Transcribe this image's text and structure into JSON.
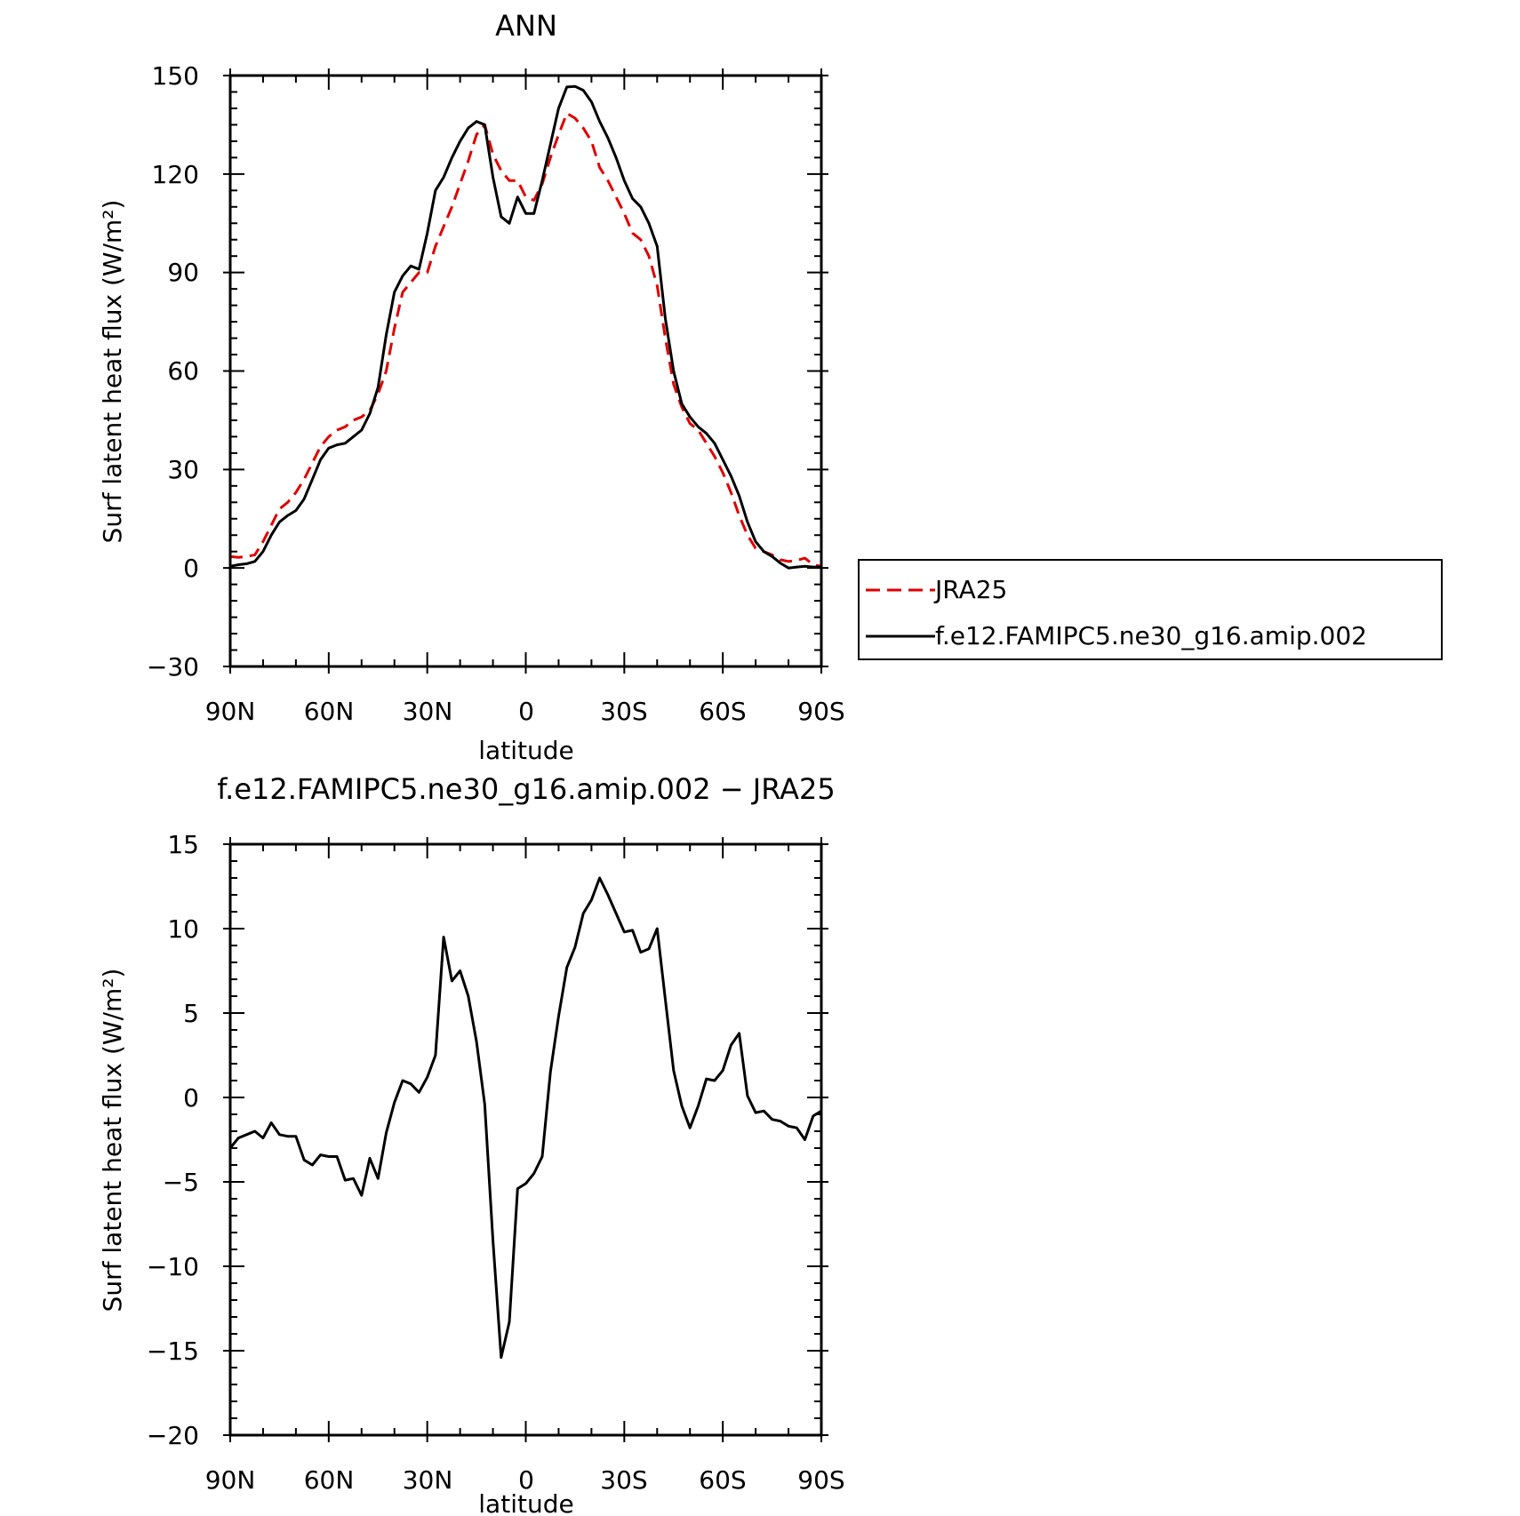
{
  "chart_data": [
    {
      "type": "line",
      "title": "ANN",
      "xlabel": "latitude",
      "ylabel": "Surf latent heat flux (W/m²)",
      "xlim": [
        90,
        -90
      ],
      "ylim": [
        -30,
        150
      ],
      "xtick_values": [
        90,
        60,
        30,
        0,
        -30,
        -60,
        -90
      ],
      "xtick_labels": [
        "90N",
        "60N",
        "30N",
        "0",
        "30S",
        "60S",
        "90S"
      ],
      "yticks": [
        150,
        120,
        90,
        60,
        30,
        0,
        -30
      ],
      "ytick_labels": [
        "150",
        "120",
        "90",
        "60",
        "30",
        "0",
        "−30"
      ],
      "legend_position": "right",
      "series": [
        {
          "name": "JRA25",
          "color": "#e00000",
          "dash": "dashed",
          "x": [
            90,
            87.5,
            85,
            82.5,
            80,
            77.5,
            75,
            72.5,
            70,
            67.5,
            65,
            62.5,
            60,
            57.5,
            55,
            52.5,
            50,
            47.5,
            45,
            42.5,
            40,
            37.5,
            35,
            32.5,
            30,
            27.5,
            25,
            22.5,
            20,
            17.5,
            15,
            12.5,
            10,
            7.5,
            5,
            2.5,
            0,
            -2.5,
            -5,
            -7.5,
            -10,
            -12.5,
            -15,
            -17.5,
            -20,
            -22.5,
            -25,
            -27.5,
            -30,
            -32.5,
            -35,
            -37.5,
            -40,
            -42.5,
            -45,
            -47.5,
            -50,
            -52.5,
            -55,
            -57.5,
            -60,
            -62.5,
            -65,
            -67.5,
            -70,
            -72.5,
            -75,
            -77.5,
            -80,
            -82.5,
            -85,
            -87.5,
            -90
          ],
          "values": [
            3.5,
            3.2,
            3.5,
            4,
            8,
            13,
            18,
            20,
            23,
            27,
            32,
            37,
            40,
            42,
            43,
            45,
            46,
            48,
            53,
            60,
            73,
            84,
            87,
            90,
            90,
            98,
            104,
            110,
            117,
            124,
            132,
            135,
            126,
            121,
            118,
            118,
            113,
            112,
            117,
            125,
            132,
            138.5,
            137,
            134,
            130,
            122,
            118,
            113,
            108,
            102,
            100,
            95,
            86,
            70,
            56,
            49,
            44,
            42,
            38,
            34,
            29,
            23,
            16,
            10,
            6,
            5,
            4,
            2.5,
            2,
            2.3,
            3,
            1,
            0.5
          ]
        },
        {
          "name": "f.e12.FAMIPC5.ne30_g16.amip.002",
          "color": "#000000",
          "dash": "solid",
          "x": [
            90,
            87.5,
            85,
            82.5,
            80,
            77.5,
            75,
            72.5,
            70,
            67.5,
            65,
            62.5,
            60,
            57.5,
            55,
            52.5,
            50,
            47.5,
            45,
            42.5,
            40,
            37.5,
            35,
            32.5,
            30,
            27.5,
            25,
            22.5,
            20,
            17.5,
            15,
            12.5,
            10,
            7.5,
            5,
            2.5,
            0,
            -2.5,
            -5,
            -7.5,
            -10,
            -12.5,
            -15,
            -17.5,
            -20,
            -22.5,
            -25,
            -27.5,
            -30,
            -32.5,
            -35,
            -37.5,
            -40,
            -42.5,
            -45,
            -47.5,
            -50,
            -52.5,
            -55,
            -57.5,
            -60,
            -62.5,
            -65,
            -67.5,
            -70,
            -72.5,
            -75,
            -77.5,
            -80,
            -82.5,
            -85,
            -87.5,
            -90
          ],
          "values": [
            0.5,
            1,
            1.3,
            2,
            5,
            10,
            14,
            16,
            17.5,
            21,
            27,
            33,
            36.5,
            37.5,
            38,
            40,
            42,
            47,
            55,
            71,
            84,
            89,
            92,
            91,
            102,
            115,
            119,
            125,
            130,
            134,
            136,
            135,
            119,
            107,
            105,
            113,
            108,
            108,
            118,
            129,
            140,
            146.5,
            146.7,
            145.5,
            142,
            136,
            131,
            125,
            118,
            112.5,
            110,
            105,
            98,
            76,
            60,
            50,
            46,
            43,
            41,
            38,
            33,
            28,
            22,
            14,
            8,
            5,
            3.5,
            1.5,
            0,
            0.3,
            0.5,
            0.3,
            0.3
          ]
        }
      ]
    },
    {
      "type": "line",
      "title": "f.e12.FAMIPC5.ne30_g16.amip.002 − JRA25",
      "xlabel": "latitude",
      "ylabel": "Surf latent heat flux (W/m²)",
      "xlim": [
        90,
        -90
      ],
      "ylim": [
        -20,
        15
      ],
      "xtick_values": [
        90,
        60,
        30,
        0,
        -30,
        -60,
        -90
      ],
      "xtick_labels": [
        "90N",
        "60N",
        "30N",
        "0",
        "30S",
        "60S",
        "90S"
      ],
      "yticks": [
        15,
        10,
        5,
        0,
        -5,
        -10,
        -15,
        -20
      ],
      "ytick_labels": [
        "15",
        "10",
        "5",
        "0",
        "−5",
        "−10",
        "−15",
        "−20"
      ],
      "series": [
        {
          "color": "#000000",
          "dash": "solid",
          "x": [
            90,
            87.5,
            85,
            82.5,
            80,
            77.5,
            75,
            72.5,
            70,
            67.5,
            65,
            62.5,
            60,
            57.5,
            55,
            52.5,
            50,
            47.5,
            45,
            42.5,
            40,
            37.5,
            35,
            32.5,
            30,
            27.5,
            25,
            22.5,
            20,
            17.5,
            15,
            12.5,
            10,
            7.5,
            5,
            2.5,
            0,
            -2.5,
            -5,
            -7.5,
            -10,
            -12.5,
            -15,
            -17.5,
            -20,
            -22.5,
            -25,
            -27.5,
            -30,
            -32.5,
            -35,
            -37.5,
            -40,
            -42.5,
            -45,
            -47.5,
            -50,
            -52.5,
            -55,
            -57.5,
            -60,
            -62.5,
            -65,
            -67.5,
            -70,
            -72.5,
            -75,
            -77.5,
            -80,
            -82.5,
            -85,
            -87.5,
            -90
          ],
          "values": [
            -3.0,
            -2.4,
            -2.2,
            -2.0,
            -2.4,
            -1.5,
            -2.2,
            -2.3,
            -2.3,
            -3.7,
            -4.0,
            -3.4,
            -3.5,
            -3.5,
            -4.9,
            -4.8,
            -5.8,
            -3.6,
            -4.8,
            -2.1,
            -0.3,
            1.0,
            0.8,
            0.3,
            1.2,
            2.5,
            9.5,
            6.9,
            7.5,
            6.0,
            3.3,
            -0.4,
            -8.5,
            -15.4,
            -13.3,
            -5.4,
            -5.1,
            -4.5,
            -3.5,
            1.5,
            4.8,
            7.7,
            8.9,
            10.9,
            11.7,
            13.0,
            12.0,
            10.9,
            9.8,
            9.9,
            8.6,
            8.8,
            10.0,
            5.8,
            1.6,
            -0.5,
            -1.8,
            -0.5,
            1.1,
            1.0,
            1.6,
            3.1,
            3.8,
            0.1,
            -0.9,
            -0.8,
            -1.3,
            -1.4,
            -1.7,
            -1.8,
            -2.5,
            -1.1,
            -0.8
          ]
        }
      ]
    }
  ]
}
